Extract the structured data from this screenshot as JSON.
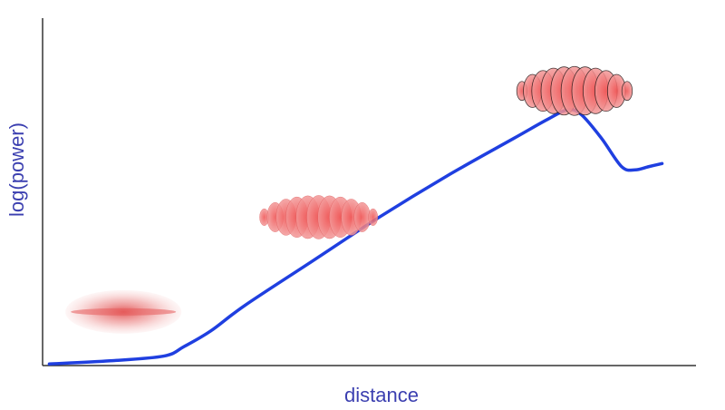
{
  "chart_data": {
    "type": "line",
    "title": "",
    "xlabel": "distance",
    "ylabel": "log(power)",
    "grid": false,
    "legend": "none",
    "x_ticks": [],
    "y_ticks": [],
    "xlim": [
      0,
      100
    ],
    "ylim": [
      0,
      100
    ],
    "series": [
      {
        "color": "#1f3fe0",
        "x": [
          1,
          10,
          18,
          21,
          25,
          30,
          40,
          50,
          60,
          70,
          75,
          78,
          80,
          83,
          86,
          88,
          90,
          92
        ],
        "y": [
          0.5,
          1.5,
          3,
          6,
          11,
          19,
          33,
          47,
          60,
          72,
          78,
          81,
          79.5,
          72,
          63,
          62,
          63,
          64
        ]
      }
    ],
    "annotations": [
      {
        "type": "smooth-blob",
        "icon": "diffuse-red-ellipse",
        "color": "#e65b5b",
        "x": 12,
        "y": 17
      },
      {
        "type": "banded-blob",
        "icon": "striped-red-ellipse",
        "color": "#e84a4a",
        "x": 41,
        "y": 47
      },
      {
        "type": "banded-blob-outlined",
        "icon": "outlined-striped-red-ellipse",
        "color": "#d63b3b",
        "x": 79,
        "y": 87
      }
    ]
  }
}
